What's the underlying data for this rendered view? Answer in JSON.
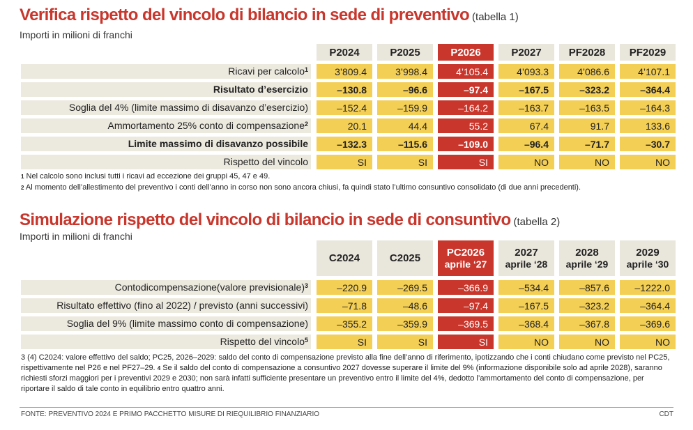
{
  "t1": {
    "title": "Verifica rispetto del vincolo di bilancio in sede di preventivo",
    "title_sub": "(tabella 1)",
    "unit": "Importi in milioni di franchi",
    "headers": [
      "P2024",
      "P2025",
      "P2026",
      "P2027",
      "PF2028",
      "PF2029"
    ],
    "rows": [
      {
        "label": "Ricavi per calcolo",
        "sup": "1",
        "values": [
          "3’809.4",
          "3’998.4",
          "4’105.4",
          "4’093.3",
          "4’086.6",
          "4’107.1"
        ]
      },
      {
        "label": "Risultato d’esercizio",
        "sup": "",
        "values": [
          "–130.8",
          "–96.6",
          "–97.4",
          "–167.5",
          "–323.2",
          "–364.4"
        ]
      },
      {
        "label": "Soglia del 4% (limite massimo di disavanzo d’esercizio)",
        "sup": "",
        "values": [
          "–152.4",
          "–159.9",
          "–164.2",
          "–163.7",
          "–163.5",
          "–164.3"
        ]
      },
      {
        "label": "Ammortamento 25% conto di compensazione",
        "sup": "2",
        "values": [
          "20.1",
          "44.4",
          "55.2",
          "67.4",
          "91.7",
          "133.6"
        ]
      },
      {
        "label": "Limite massimo di disavanzo possibile",
        "sup": "",
        "values": [
          "–132.3",
          "–115.6",
          "–109.0",
          "–96.4",
          "–71.7",
          "–30.7"
        ]
      },
      {
        "label": "Rispetto del vincolo",
        "sup": "",
        "values": [
          "SI",
          "SI",
          "SI",
          "NO",
          "NO",
          "NO"
        ]
      }
    ],
    "note1_sup": "1",
    "note1": "Nel calcolo sono inclusi tutti i ricavi ad eccezione dei gruppi 45, 47 e 49.",
    "note2_sup": "2",
    "note2": "Al momento dell’allestimento del preventivo i conti dell’anno in corso non sono ancora chiusi, fa quindi stato l’ultimo consuntivo consolidato (di due anni precedenti)."
  },
  "t2": {
    "title": "Simulazione rispetto del vincolo di bilancio in sede di consuntivo",
    "title_sub": "(tabella 2)",
    "unit": "Importi in milioni di franchi",
    "headers": [
      {
        "l1": "C2024",
        "l2": ""
      },
      {
        "l1": "C2025",
        "l2": ""
      },
      {
        "l1": "PC2026",
        "l2": "aprile ‘27"
      },
      {
        "l1": "2027",
        "l2": "aprile ‘28"
      },
      {
        "l1": "2028",
        "l2": "aprile ‘29"
      },
      {
        "l1": "2029",
        "l2": "aprile ‘30"
      }
    ],
    "rows": [
      {
        "label": "Contodicompensazione(valore previsionale)",
        "sup": "3",
        "values": [
          "–220.9",
          "–269.5",
          "–366.9",
          "–534.4",
          "–857.6",
          "–1222.0"
        ]
      },
      {
        "label": "Risultato effettivo (fino al 2022) / previsto (anni successivi)",
        "sup": "",
        "values": [
          "–71.8",
          "–48.6",
          "–97.4",
          "–167.5",
          "–323.2",
          "–364.4"
        ]
      },
      {
        "label": "Soglia del 9% (limite massimo conto di compensazione)",
        "sup": "",
        "values": [
          "–355.2",
          "–359.9",
          "–369.5",
          "–368.4",
          "–367.8",
          "–369.6"
        ]
      },
      {
        "label": "Rispetto del vincolo",
        "sup": "5",
        "values": [
          "SI",
          "SI",
          "SI",
          "NO",
          "NO",
          "NO"
        ]
      }
    ],
    "note_sup": "3",
    "note_line1": "3 (4) C2024: valore effettivo del saldo; PC25, 2026–2029: saldo del conto di compensazione previsto alla fine dell’anno di riferimento, ipotizzando che i conti chiudano come previsto nel PC25,",
    "note_line2a": "rispettivamente nel P26 e nel PF27–29.",
    "note_sup2": "4",
    "note_line2b": "Se il saldo del conto di compensazione a consuntivo 2027 dovesse superare il limite del 9% (informazione disponibile solo ad aprile 2028), saranno",
    "note_line3": "richiesti sforzi maggiori per i preventivi 2029 e 2030; non sarà infatti sufficiente presentare un preventivo entro il limite del 4%, dedotto l’ammortamento del conto di compensazione, per",
    "note_line4": "riportare il saldo di tale conto in equilibrio entro quattro anni."
  },
  "footer": {
    "source": "FONTE: PREVENTIVO 2024 E PRIMO PACCHETTO MISURE DI RIEQUILIBRIO FINANZIARIO",
    "credit": "CDT"
  },
  "colors": {
    "accent": "#c8362c",
    "cell": "#f4cf55",
    "header": "#e9e6dc"
  }
}
